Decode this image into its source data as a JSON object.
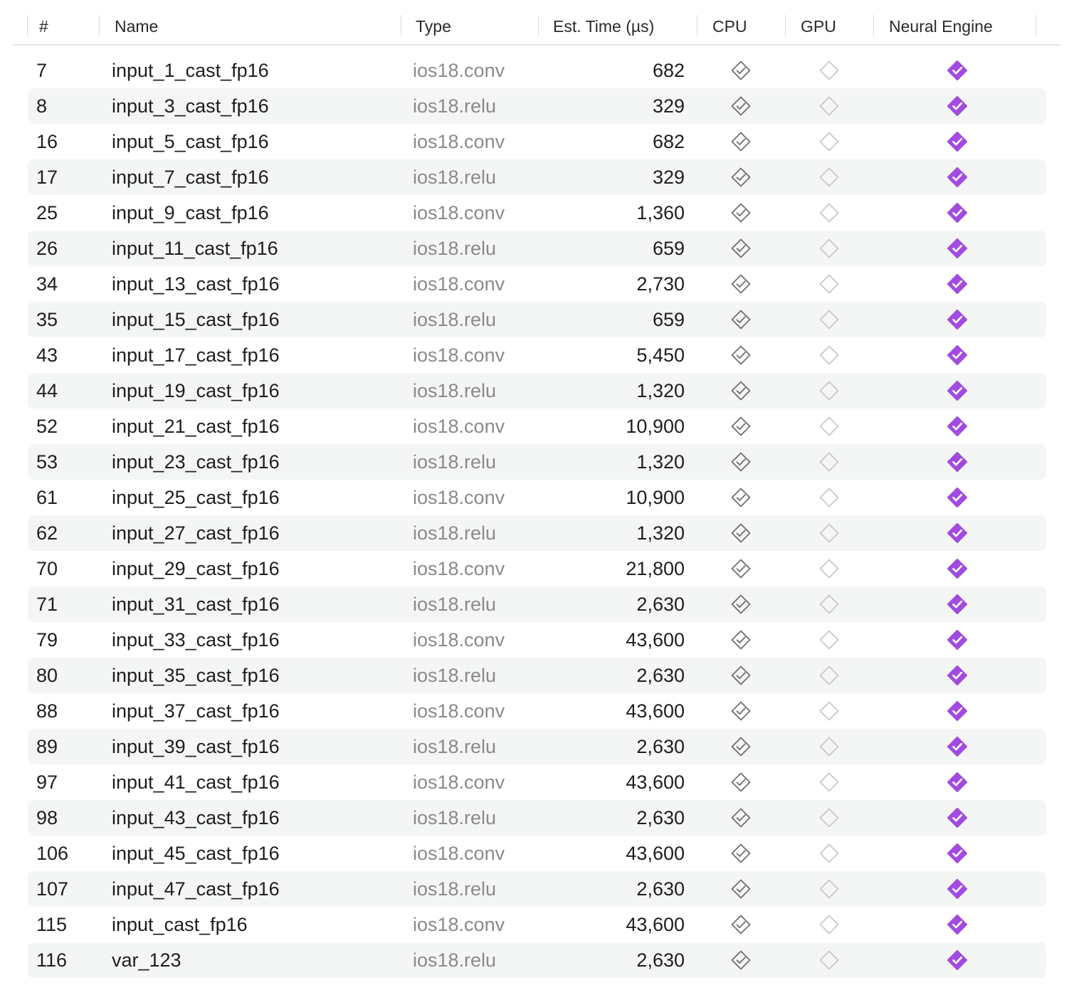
{
  "header": {
    "num": "#",
    "name": "Name",
    "type": "Type",
    "time": "Est. Time (µs)",
    "cpu": "CPU",
    "gpu": "GPU",
    "neural_engine": "Neural Engine"
  },
  "colors": {
    "neural_engine_supported": "#a24be0",
    "cpu_supported_outline": "#6f6f6f",
    "gpu_unsupported_outline": "#c8c8c8",
    "alt_row": "#f4f5f5"
  },
  "rows": [
    {
      "num": "7",
      "name": "input_1_cast_fp16",
      "type": "ios18.conv",
      "time": "682",
      "cpu": "supported",
      "gpu": "unsupported",
      "ne": "preferred"
    },
    {
      "num": "8",
      "name": "input_3_cast_fp16",
      "type": "ios18.relu",
      "time": "329",
      "cpu": "supported",
      "gpu": "unsupported",
      "ne": "preferred"
    },
    {
      "num": "16",
      "name": "input_5_cast_fp16",
      "type": "ios18.conv",
      "time": "682",
      "cpu": "supported",
      "gpu": "unsupported",
      "ne": "preferred"
    },
    {
      "num": "17",
      "name": "input_7_cast_fp16",
      "type": "ios18.relu",
      "time": "329",
      "cpu": "supported",
      "gpu": "unsupported",
      "ne": "preferred"
    },
    {
      "num": "25",
      "name": "input_9_cast_fp16",
      "type": "ios18.conv",
      "time": "1,360",
      "cpu": "supported",
      "gpu": "unsupported",
      "ne": "preferred"
    },
    {
      "num": "26",
      "name": "input_11_cast_fp16",
      "type": "ios18.relu",
      "time": "659",
      "cpu": "supported",
      "gpu": "unsupported",
      "ne": "preferred"
    },
    {
      "num": "34",
      "name": "input_13_cast_fp16",
      "type": "ios18.conv",
      "time": "2,730",
      "cpu": "supported",
      "gpu": "unsupported",
      "ne": "preferred"
    },
    {
      "num": "35",
      "name": "input_15_cast_fp16",
      "type": "ios18.relu",
      "time": "659",
      "cpu": "supported",
      "gpu": "unsupported",
      "ne": "preferred"
    },
    {
      "num": "43",
      "name": "input_17_cast_fp16",
      "type": "ios18.conv",
      "time": "5,450",
      "cpu": "supported",
      "gpu": "unsupported",
      "ne": "preferred"
    },
    {
      "num": "44",
      "name": "input_19_cast_fp16",
      "type": "ios18.relu",
      "time": "1,320",
      "cpu": "supported",
      "gpu": "unsupported",
      "ne": "preferred"
    },
    {
      "num": "52",
      "name": "input_21_cast_fp16",
      "type": "ios18.conv",
      "time": "10,900",
      "cpu": "supported",
      "gpu": "unsupported",
      "ne": "preferred"
    },
    {
      "num": "53",
      "name": "input_23_cast_fp16",
      "type": "ios18.relu",
      "time": "1,320",
      "cpu": "supported",
      "gpu": "unsupported",
      "ne": "preferred"
    },
    {
      "num": "61",
      "name": "input_25_cast_fp16",
      "type": "ios18.conv",
      "time": "10,900",
      "cpu": "supported",
      "gpu": "unsupported",
      "ne": "preferred"
    },
    {
      "num": "62",
      "name": "input_27_cast_fp16",
      "type": "ios18.relu",
      "time": "1,320",
      "cpu": "supported",
      "gpu": "unsupported",
      "ne": "preferred"
    },
    {
      "num": "70",
      "name": "input_29_cast_fp16",
      "type": "ios18.conv",
      "time": "21,800",
      "cpu": "supported",
      "gpu": "unsupported",
      "ne": "preferred"
    },
    {
      "num": "71",
      "name": "input_31_cast_fp16",
      "type": "ios18.relu",
      "time": "2,630",
      "cpu": "supported",
      "gpu": "unsupported",
      "ne": "preferred"
    },
    {
      "num": "79",
      "name": "input_33_cast_fp16",
      "type": "ios18.conv",
      "time": "43,600",
      "cpu": "supported",
      "gpu": "unsupported",
      "ne": "preferred"
    },
    {
      "num": "80",
      "name": "input_35_cast_fp16",
      "type": "ios18.relu",
      "time": "2,630",
      "cpu": "supported",
      "gpu": "unsupported",
      "ne": "preferred"
    },
    {
      "num": "88",
      "name": "input_37_cast_fp16",
      "type": "ios18.conv",
      "time": "43,600",
      "cpu": "supported",
      "gpu": "unsupported",
      "ne": "preferred"
    },
    {
      "num": "89",
      "name": "input_39_cast_fp16",
      "type": "ios18.relu",
      "time": "2,630",
      "cpu": "supported",
      "gpu": "unsupported",
      "ne": "preferred"
    },
    {
      "num": "97",
      "name": "input_41_cast_fp16",
      "type": "ios18.conv",
      "time": "43,600",
      "cpu": "supported",
      "gpu": "unsupported",
      "ne": "preferred"
    },
    {
      "num": "98",
      "name": "input_43_cast_fp16",
      "type": "ios18.relu",
      "time": "2,630",
      "cpu": "supported",
      "gpu": "unsupported",
      "ne": "preferred"
    },
    {
      "num": "106",
      "name": "input_45_cast_fp16",
      "type": "ios18.conv",
      "time": "43,600",
      "cpu": "supported",
      "gpu": "unsupported",
      "ne": "preferred"
    },
    {
      "num": "107",
      "name": "input_47_cast_fp16",
      "type": "ios18.relu",
      "time": "2,630",
      "cpu": "supported",
      "gpu": "unsupported",
      "ne": "preferred"
    },
    {
      "num": "115",
      "name": "input_cast_fp16",
      "type": "ios18.conv",
      "time": "43,600",
      "cpu": "supported",
      "gpu": "unsupported",
      "ne": "preferred"
    },
    {
      "num": "116",
      "name": "var_123",
      "type": "ios18.relu",
      "time": "2,630",
      "cpu": "supported",
      "gpu": "unsupported",
      "ne": "preferred"
    }
  ]
}
